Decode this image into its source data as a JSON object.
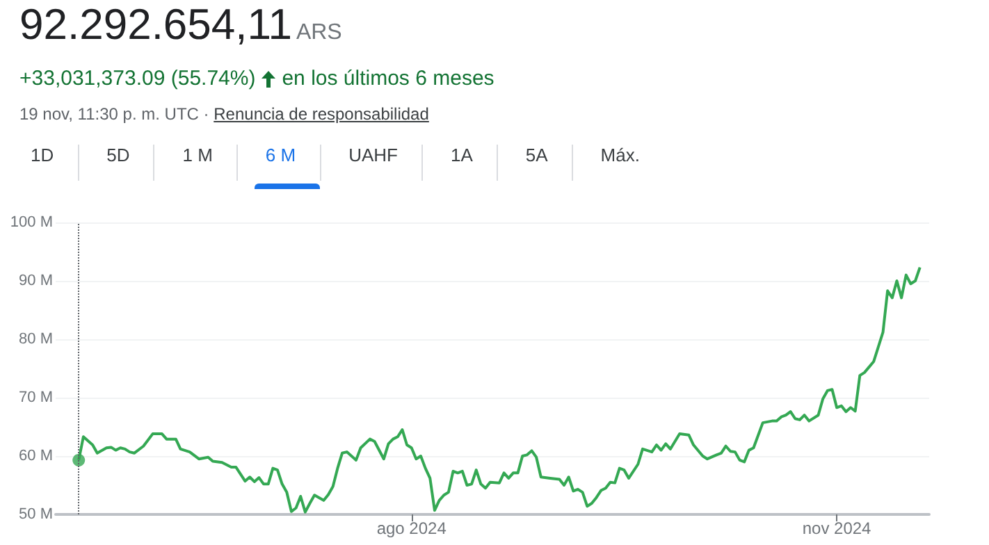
{
  "chart_data": {
    "type": "line",
    "title": "92.292.654,11",
    "annotations": [
      "ARS",
      "+33,031,373.09 (55.74%)",
      "en los últimos 6 meses",
      "19 nov, 11:30 p. m. UTC ·",
      "Renuncia de responsabilidad",
      "1D",
      "5D",
      "1 M",
      "6 M",
      "UAHF",
      "1A",
      "5A",
      "Máx."
    ],
    "series": [
      {
        "color": "#34a853",
        "marker": "none",
        "x": [
          "2024-05-21",
          "2024-05-22",
          "2024-05-24",
          "2024-05-25",
          "2024-05-27",
          "2024-05-28",
          "2024-05-29",
          "2024-05-30",
          "2024-05-31",
          "2024-06-01",
          "2024-06-02",
          "2024-06-04",
          "2024-06-06",
          "2024-06-08",
          "2024-06-09",
          "2024-06-11",
          "2024-06-12",
          "2024-06-14",
          "2024-06-16",
          "2024-06-18",
          "2024-06-19",
          "2024-06-21",
          "2024-06-23",
          "2024-06-24",
          "2024-06-26",
          "2024-06-27",
          "2024-06-28",
          "2024-06-29",
          "2024-06-30",
          "2024-07-01",
          "2024-07-02",
          "2024-07-03",
          "2024-07-04",
          "2024-07-05",
          "2024-07-06",
          "2024-07-07",
          "2024-07-08",
          "2024-07-09",
          "2024-07-10",
          "2024-07-11",
          "2024-07-13",
          "2024-07-14",
          "2024-07-15",
          "2024-07-16",
          "2024-07-17",
          "2024-07-18",
          "2024-07-20",
          "2024-07-21",
          "2024-07-23",
          "2024-07-24",
          "2024-07-26",
          "2024-07-27",
          "2024-07-28",
          "2024-07-29",
          "2024-07-30",
          "2024-07-31",
          "2024-08-01",
          "2024-08-02",
          "2024-08-03",
          "2024-08-04",
          "2024-08-05",
          "2024-08-06",
          "2024-08-07",
          "2024-08-08",
          "2024-08-09",
          "2024-08-10",
          "2024-08-11",
          "2024-08-12",
          "2024-08-13",
          "2024-08-14",
          "2024-08-15",
          "2024-08-16",
          "2024-08-17",
          "2024-08-18",
          "2024-08-20",
          "2024-08-21",
          "2024-08-22",
          "2024-08-23",
          "2024-08-24",
          "2024-08-25",
          "2024-08-26",
          "2024-08-27",
          "2024-08-28",
          "2024-08-29",
          "2024-08-31",
          "2024-09-02",
          "2024-09-03",
          "2024-09-04",
          "2024-09-05",
          "2024-09-06",
          "2024-09-07",
          "2024-09-08",
          "2024-09-09",
          "2024-09-10",
          "2024-09-11",
          "2024-09-12",
          "2024-09-13",
          "2024-09-14",
          "2024-09-15",
          "2024-09-16",
          "2024-09-17",
          "2024-09-19",
          "2024-09-20",
          "2024-09-22",
          "2024-09-23",
          "2024-09-24",
          "2024-09-25",
          "2024-09-26",
          "2024-09-28",
          "2024-09-30",
          "2024-10-01",
          "2024-10-03",
          "2024-10-04",
          "2024-10-06",
          "2024-10-07",
          "2024-10-08",
          "2024-10-09",
          "2024-10-10",
          "2024-10-11",
          "2024-10-12",
          "2024-10-13",
          "2024-10-14",
          "2024-10-16",
          "2024-10-18",
          "2024-10-19",
          "2024-10-20",
          "2024-10-21",
          "2024-10-22",
          "2024-10-23",
          "2024-10-24",
          "2024-10-25",
          "2024-10-26",
          "2024-10-28",
          "2024-10-29",
          "2024-10-30",
          "2024-10-31",
          "2024-11-01",
          "2024-11-02",
          "2024-11-03",
          "2024-11-04",
          "2024-11-05",
          "2024-11-06",
          "2024-11-07",
          "2024-11-09",
          "2024-11-11",
          "2024-11-12",
          "2024-11-13",
          "2024-11-14",
          "2024-11-15",
          "2024-11-16",
          "2024-11-17",
          "2024-11-18",
          "2024-11-19"
        ],
        "values": [
          59.3,
          63.3,
          61.9,
          60.5,
          61.4,
          61.5,
          61.0,
          61.4,
          61.2,
          60.7,
          60.5,
          61.7,
          63.8,
          63.8,
          62.9,
          62.9,
          61.2,
          60.7,
          59.5,
          59.8,
          59.1,
          58.9,
          58.1,
          58.1,
          55.7,
          56.4,
          55.6,
          56.3,
          55.2,
          55.2,
          57.9,
          57.6,
          55.2,
          53.8,
          50.5,
          51.1,
          53.1,
          50.4,
          51.9,
          53.3,
          52.4,
          53.4,
          54.8,
          57.9,
          60.5,
          60.7,
          59.3,
          61.4,
          62.9,
          62.5,
          59.5,
          62.1,
          62.9,
          63.3,
          64.5,
          61.9,
          61.4,
          59.5,
          60.0,
          57.9,
          56.2,
          50.7,
          52.4,
          53.3,
          53.8,
          57.4,
          57.1,
          57.4,
          55.0,
          55.2,
          57.6,
          55.2,
          54.5,
          55.5,
          55.4,
          57.1,
          56.2,
          57.1,
          57.1,
          60.0,
          60.2,
          60.9,
          59.8,
          56.4,
          56.2,
          56.0,
          55.0,
          56.4,
          54.0,
          54.3,
          53.8,
          51.4,
          51.9,
          52.9,
          54.1,
          54.5,
          55.5,
          55.4,
          57.9,
          57.6,
          56.2,
          58.6,
          61.2,
          60.7,
          61.9,
          61.0,
          62.1,
          61.2,
          63.8,
          63.6,
          61.9,
          60.0,
          59.5,
          60.2,
          60.5,
          61.7,
          60.8,
          60.7,
          59.3,
          59.0,
          61.0,
          61.4,
          65.7,
          66.0,
          66.0,
          66.7,
          67.0,
          67.6,
          66.4,
          66.2,
          67.0,
          66.0,
          67.0,
          69.8,
          71.2,
          71.4,
          68.3,
          68.6,
          67.6,
          68.3,
          67.7,
          73.8,
          74.3,
          76.2,
          81.2,
          88.3,
          87.1,
          90.0,
          87.1,
          91.0,
          89.5,
          90.0,
          92.3
        ]
      },
      {
        "type": "scatter",
        "color": "#34a853",
        "marker": "circle",
        "x": [
          "2024-05-21"
        ],
        "values": [
          59.3
        ]
      }
    ],
    "xlim": [
      "2024-05-16",
      "2024-11-21"
    ],
    "xticks": [
      {
        "value": "2024-08-01",
        "label": "ago 2024"
      },
      {
        "value": "2024-11-01",
        "label": "nov 2024"
      }
    ],
    "ylim": [
      50,
      100
    ],
    "yticks": [
      {
        "value": 50,
        "label": "50 M"
      },
      {
        "value": 60,
        "label": "60 M"
      },
      {
        "value": 70,
        "label": "70 M"
      },
      {
        "value": 80,
        "label": "80 M"
      },
      {
        "value": 90,
        "label": "90 M"
      },
      {
        "value": 100,
        "label": "100 M"
      }
    ],
    "grid": "y",
    "ref_lines": [
      {
        "axis": "x",
        "value": "2024-05-21",
        "color": "#5f6368",
        "line_style": "dotted"
      }
    ]
  }
}
